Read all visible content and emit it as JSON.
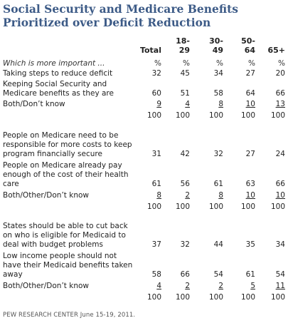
{
  "title_line1": "Social Security and Medicare Benefits",
  "title_line2": "Prioritized over Deficit Reduction",
  "columns": [
    "Total",
    "18-\n29",
    "30-\n49",
    "50-\n64",
    "65+"
  ],
  "col_total": "Total",
  "col_18_29_a": "18-",
  "col_18_29_b": "29",
  "col_30_49_a": "30-",
  "col_30_49_b": "49",
  "col_50_64_a": "50-",
  "col_50_64_b": "64",
  "col_65": "65+",
  "question": "Which is more important ...",
  "pct": "%",
  "blocks": [
    {
      "rows": [
        {
          "label": "Taking steps to reduce deficit",
          "values": [
            "32",
            "45",
            "34",
            "27",
            "20"
          ]
        },
        {
          "label": "Keeping Social Security and Medicare benefits as they are",
          "values": [
            "60",
            "51",
            "58",
            "64",
            "66"
          ]
        },
        {
          "label": "Both/Don’t know",
          "values": [
            "9",
            "4",
            "8",
            "10",
            "13"
          ]
        },
        {
          "label": "",
          "values": [
            "100",
            "100",
            "100",
            "100",
            "100"
          ]
        }
      ]
    },
    {
      "rows": [
        {
          "label": "People on Medicare need to be responsible for more costs to keep program financially secure",
          "values": [
            "31",
            "42",
            "32",
            "27",
            "24"
          ]
        },
        {
          "label": "People on Medicare already pay enough of the cost of their health care",
          "values": [
            "61",
            "56",
            "61",
            "63",
            "66"
          ]
        },
        {
          "label": "Both/Other/Don’t know",
          "values": [
            "8",
            "2",
            "8",
            "10",
            "10"
          ]
        },
        {
          "label": "",
          "values": [
            "100",
            "100",
            "100",
            "100",
            "100"
          ]
        }
      ]
    },
    {
      "rows": [
        {
          "label": "States should be able to cut back on who is eligible for Medicaid to deal with budget problems",
          "values": [
            "37",
            "32",
            "44",
            "35",
            "34"
          ]
        },
        {
          "label": "Low income people should not have their Medicaid benefits taken away",
          "values": [
            "58",
            "66",
            "54",
            "61",
            "54"
          ]
        },
        {
          "label": "Both/Other/Don’t know",
          "values": [
            "4",
            "2",
            "2",
            "5",
            "11"
          ]
        },
        {
          "label": "",
          "values": [
            "100",
            "100",
            "100",
            "100",
            "100"
          ]
        }
      ]
    }
  ],
  "footer": "PEW RESEARCH CENTER June 15-19, 2011."
}
